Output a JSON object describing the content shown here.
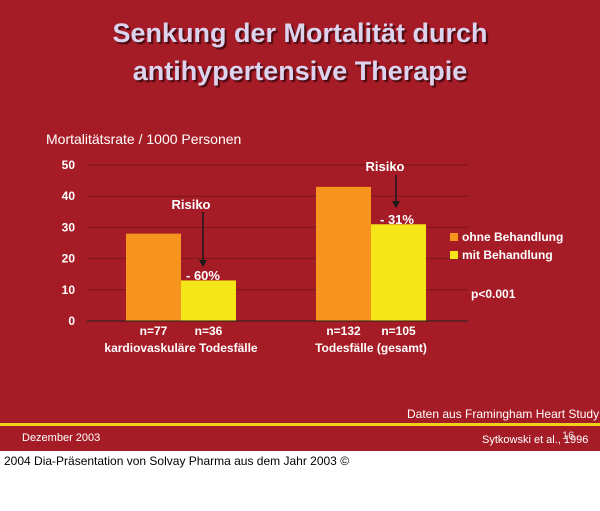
{
  "slide": {
    "title_line1": "Senkung der Mortalität durch",
    "title_line2": "antihypertensive Therapie",
    "source_note": "Daten aus Framingham Heart Study",
    "date": "Dezember 2003",
    "citation": "Sytkowski et al., 1996",
    "page_number": "16"
  },
  "caption": "2004 Dia-Präsentation von Solvay Pharma aus dem Jahr 2003 ©",
  "colors": {
    "background": "#a61c26",
    "ohne": "#f7941d",
    "mit": "#f5e61a",
    "title": "#dcd4ee",
    "accent_line": "#f2d21c"
  },
  "chart_data": {
    "type": "bar",
    "ylabel": "Mortalitätsrate / 1000 Personen",
    "ylim": [
      0,
      50
    ],
    "yticks": [
      "0",
      "10",
      "20",
      "30",
      "40",
      "50"
    ],
    "categories": [
      "kardiovaskuläre Todesfälle",
      "Todesfälle (gesamt)"
    ],
    "series": [
      {
        "name": "ohne Behandlung",
        "values": [
          28,
          43
        ],
        "n_labels": [
          "n=77",
          "n=132"
        ]
      },
      {
        "name": "mit Behandlung",
        "values": [
          13,
          31
        ],
        "n_labels": [
          "n=36",
          "n=105"
        ]
      }
    ],
    "annotations": [
      {
        "label": "Risiko",
        "change": "- 60%"
      },
      {
        "label": "Risiko",
        "change": "- 31%"
      }
    ],
    "significance": "p<0.001",
    "legend_position": "right"
  }
}
